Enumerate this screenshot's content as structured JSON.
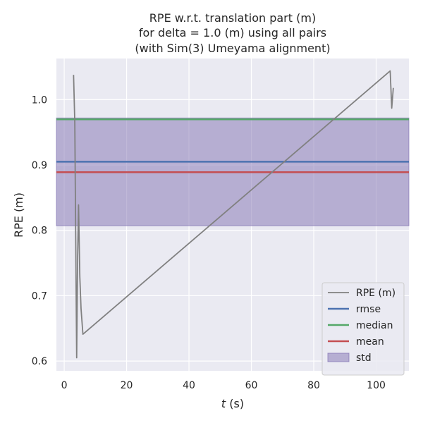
{
  "chart_data": {
    "type": "line",
    "title_lines": [
      "RPE w.r.t. translation part (m)",
      "for delta = 1.0 (m) using all pairs",
      "(with Sim(3) Umeyama alignment)"
    ],
    "xlabel_var": "t",
    "xlabel_unit": " (s)",
    "ylabel": "RPE (m)",
    "xlim": [
      -2.5,
      110.5
    ],
    "ylim": [
      0.585,
      1.063
    ],
    "x_ticks": [
      0,
      20,
      40,
      60,
      80,
      100
    ],
    "y_ticks": [
      0.6,
      0.7,
      0.8,
      0.9,
      1.0
    ],
    "x_tick_labels": [
      "0",
      "20",
      "40",
      "60",
      "80",
      "100"
    ],
    "y_tick_labels": [
      "0.6",
      "0.7",
      "0.8",
      "0.9",
      "1.0"
    ],
    "grid": true,
    "legend_position": "lower-right",
    "series": [
      {
        "name": "RPE (m)",
        "color": "#808080",
        "x": [
          3.0,
          3.4,
          3.8,
          4.0,
          4.3,
          4.6,
          5.0,
          5.4,
          6.0,
          104.5,
          105.0,
          105.5
        ],
        "y": [
          1.038,
          0.965,
          0.72,
          0.605,
          0.76,
          0.839,
          0.73,
          0.68,
          0.641,
          1.044,
          0.987,
          1.018
        ]
      }
    ],
    "stats": {
      "rmse": {
        "name": "rmse",
        "value": 0.905,
        "color": "#4c72b0"
      },
      "median": {
        "name": "median",
        "value": 0.97,
        "color": "#55a868"
      },
      "mean": {
        "name": "mean",
        "value": 0.889,
        "color": "#c44e52"
      },
      "std": {
        "name": "std",
        "range": [
          0.807,
          0.972
        ],
        "color": "#8172b2"
      }
    },
    "colors": {
      "plot_background": "#eaeaf2",
      "grid": "#ffffff",
      "text": "#262626"
    }
  }
}
